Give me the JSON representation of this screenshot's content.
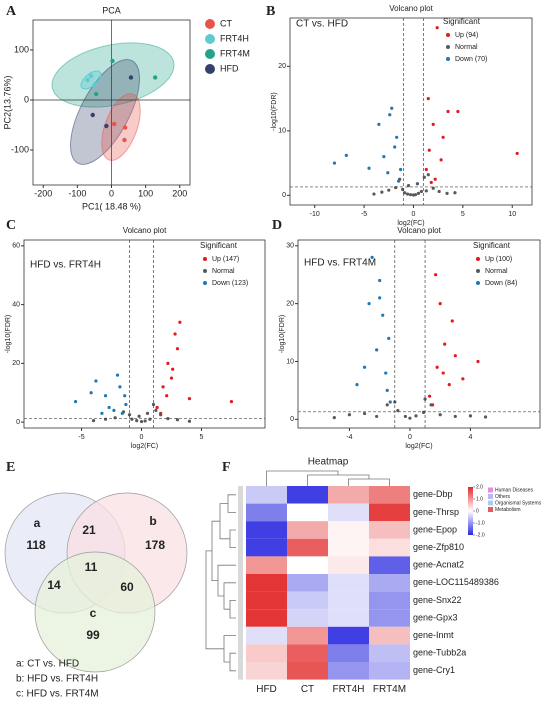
{
  "chart_data": [
    {
      "type": "scatter",
      "panel": "A",
      "title": "PCA",
      "xlabel": "PC1( 18.48 %)",
      "ylabel": "PC2(13.76%)",
      "xlim": [
        -230,
        230
      ],
      "ylim": [
        -170,
        160
      ],
      "xticks": [
        -200,
        -100,
        0,
        100,
        200
      ],
      "yticks": [
        -100,
        0,
        100
      ],
      "series": [
        {
          "name": "CT",
          "color": "#e8534a",
          "x": [
            8,
            38,
            40
          ],
          "values": [
            -48,
            -80,
            -55
          ]
        },
        {
          "name": "FRT4H",
          "color": "#5fcbd0",
          "x": [
            -70,
            -50,
            -60
          ],
          "values": [
            40,
            30,
            48
          ]
        },
        {
          "name": "FRT4M",
          "color": "#23a48a",
          "x": [
            3,
            128,
            -45
          ],
          "values": [
            78,
            45,
            12
          ]
        },
        {
          "name": "HFD",
          "color": "#33416b",
          "x": [
            57,
            -15,
            -55
          ],
          "values": [
            45,
            -52,
            -30
          ]
        }
      ]
    },
    {
      "type": "volcano",
      "panel": "B",
      "title": "Volcano plot",
      "subtitle": "CT vs. HFD",
      "legend_title": "Significant",
      "xlabel": "log2(FC)",
      "ylabel": "-log10(FDR)",
      "xlim": [
        -12.5,
        12
      ],
      "ylim": [
        -1.5,
        27.5
      ],
      "xticks": [
        -10,
        -5,
        0,
        5,
        10
      ],
      "yticks": [
        0,
        10,
        20
      ],
      "vlines": [
        -1,
        1
      ],
      "hline": 1.3,
      "series": [
        {
          "name": "Up (94)",
          "color": "#e41a1c",
          "x": [
            1.3,
            1.6,
            2,
            2.4,
            3,
            3.5,
            1.8,
            2.8,
            4.5,
            10.5,
            2.2,
            1.5
          ],
          "values": [
            4,
            7,
            11,
            26,
            9,
            13,
            2,
            5.5,
            13,
            6.5,
            2.5,
            15
          ]
        },
        {
          "name": "Normal",
          "color": "#595959",
          "x": [
            -3.2,
            -2.5,
            -1.8,
            -1.4,
            -0.9,
            -0.6,
            -0.3,
            0,
            0.2,
            0.5,
            0.8,
            1.1,
            1.5,
            2,
            2.6,
            3.4,
            -0.5,
            0.4,
            -1.1,
            1.3,
            -4,
            4.2
          ],
          "values": [
            0.5,
            0.8,
            1.2,
            2.5,
            0.4,
            0.2,
            0.1,
            0.05,
            0.1,
            0.3,
            0.6,
            2.8,
            3.2,
            1.1,
            0.6,
            0.3,
            1.5,
            1.8,
            0.9,
            0.7,
            0.2,
            0.4
          ]
        },
        {
          "name": "Down (70)",
          "color": "#1f78b4",
          "x": [
            -1.3,
            -1.7,
            -2.2,
            -3,
            -3.5,
            -1.5,
            -2.6,
            -4.5,
            -6.8,
            -8,
            -1.9,
            -2.4
          ],
          "values": [
            4,
            9,
            13.5,
            6,
            11,
            2.2,
            3.5,
            4.2,
            6.2,
            5,
            7.5,
            12.5
          ]
        }
      ]
    },
    {
      "type": "volcano",
      "panel": "C",
      "title": "Volcano plot",
      "subtitle": "HFD vs. FRT4H",
      "legend_title": "Significant",
      "xlabel": "log2(FC)",
      "ylabel": "-log10(FDR)",
      "xlim": [
        -9.8,
        10.3
      ],
      "ylim": [
        -2,
        62
      ],
      "xticks": [
        -5,
        0,
        5
      ],
      "yticks": [
        0,
        20,
        40,
        60
      ],
      "vlines": [
        -1,
        1
      ],
      "hline": 1.3,
      "series": [
        {
          "name": "Up (147)",
          "color": "#e41a1c",
          "x": [
            1.3,
            1.8,
            2.2,
            2.8,
            3.2,
            2.5,
            4,
            7.5,
            1.6,
            3,
            2.1,
            2.6
          ],
          "values": [
            5,
            12,
            20,
            30,
            34,
            15,
            8,
            7,
            3,
            25,
            9,
            18
          ]
        },
        {
          "name": "Normal",
          "color": "#595959",
          "x": [
            -4,
            -3,
            -2.2,
            -1.5,
            -0.8,
            -0.4,
            0,
            0.3,
            0.7,
            1.2,
            1.6,
            2.2,
            3,
            4,
            -0.2,
            0.5,
            -1,
            1
          ],
          "values": [
            0.5,
            1,
            1.5,
            3.5,
            1,
            0.5,
            0.2,
            0.4,
            1,
            4,
            2.5,
            1.2,
            0.8,
            0.3,
            2,
            3,
            2.5,
            6
          ]
        },
        {
          "name": "Down (123)",
          "color": "#1f78b4",
          "x": [
            -1.3,
            -1.8,
            -2.3,
            -3,
            -3.8,
            -5.5,
            -1.6,
            -2.7,
            -4.2,
            -2,
            -1.4,
            -3.3
          ],
          "values": [
            6,
            12,
            4,
            9,
            14,
            7,
            3,
            5,
            10,
            16,
            9,
            3
          ]
        }
      ]
    },
    {
      "type": "volcano",
      "panel": "D",
      "title": "Volcano plot",
      "subtitle": "HFD vs. FRT4M",
      "legend_title": "Significant",
      "xlabel": "log2(FC)",
      "ylabel": "-log10(FDR)",
      "xlim": [
        -7.4,
        8.6
      ],
      "ylim": [
        -1.5,
        31
      ],
      "xticks": [
        -4,
        0,
        4
      ],
      "yticks": [
        0,
        10,
        20,
        30
      ],
      "vlines": [
        -1,
        1
      ],
      "hline": 1.3,
      "series": [
        {
          "name": "Up (100)",
          "color": "#e41a1c",
          "x": [
            1.3,
            1.8,
            2.3,
            2.8,
            3.5,
            4.5,
            2,
            1.5,
            2.6,
            3,
            1.7,
            2.2
          ],
          "values": [
            4,
            9,
            13,
            17,
            7,
            10,
            20,
            2.5,
            6,
            11,
            25,
            8
          ]
        },
        {
          "name": "Normal",
          "color": "#595959",
          "x": [
            -5,
            -4,
            -3,
            -2.2,
            -1.5,
            -0.8,
            -0.3,
            0,
            0.4,
            0.9,
            1.4,
            2,
            3,
            4,
            5,
            -1,
            1
          ],
          "values": [
            0.3,
            0.8,
            1,
            0.5,
            2.5,
            1.5,
            0.5,
            0.2,
            0.6,
            1.2,
            2.5,
            0.8,
            0.5,
            0.6,
            0.4,
            3,
            3.5
          ]
        },
        {
          "name": "Down (84)",
          "color": "#1f78b4",
          "x": [
            -1.3,
            -1.6,
            -2,
            -2.5,
            -1.8,
            -2.2,
            -3,
            -1.5,
            -2.7,
            -1.4,
            -2,
            -3.5
          ],
          "values": [
            3,
            8,
            24,
            28,
            18,
            12,
            9,
            5,
            20,
            14,
            21,
            6
          ]
        }
      ]
    },
    {
      "type": "venn",
      "panel": "E",
      "set_labels": [
        "a",
        "b",
        "c"
      ],
      "set_colors": [
        "#e3e6f5",
        "#f9e0e4",
        "#e5f1d9"
      ],
      "values": [
        118,
        178,
        99,
        21,
        14,
        60,
        11
      ],
      "legend": [
        "a: CT vs. HFD",
        "b: HFD vs. FRT4H",
        "c: HFD vs. FRT4M"
      ]
    },
    {
      "type": "heatmap",
      "panel": "F",
      "title": "Heatmap",
      "columns": [
        "HFD",
        "CT",
        "FRT4H",
        "FRT4M"
      ],
      "rows": [
        "gene-Dbp",
        "gene-Thrsp",
        "gene-Epop",
        "gene-Zfp810",
        "gene-Acnat2",
        "gene-LOC115489386",
        "gene-Snx22",
        "gene-Gpx3",
        "gene-Inmt",
        "gene-Tubb2a",
        "gene-Cry1"
      ],
      "values": [
        [
          -0.5,
          -1.8,
          0.8,
          1.2
        ],
        [
          -1.2,
          0,
          -0.3,
          1.8
        ],
        [
          -1.8,
          0.8,
          0.1,
          0.6
        ],
        [
          -1.8,
          1.5,
          0.1,
          0.3
        ],
        [
          1,
          0,
          0.2,
          -1.5
        ],
        [
          1.9,
          -0.8,
          -0.3,
          -0.8
        ],
        [
          1.9,
          -0.5,
          -0.3,
          -1
        ],
        [
          1.9,
          -0.4,
          -0.3,
          -1
        ],
        [
          -0.3,
          1,
          -1.8,
          0.6
        ],
        [
          0.5,
          1.5,
          -1.2,
          -0.6
        ],
        [
          0.4,
          1.6,
          -1,
          -0.7
        ]
      ],
      "colors": [
        "#2a2ae0",
        "#ffffff",
        "#e22a2a"
      ],
      "clim": [
        -2,
        2
      ],
      "cticks": [
        {
          "value": 2,
          "label": "2.0"
        },
        {
          "value": 1,
          "label": "1.0"
        },
        0,
        {
          "value": -1,
          "label": "-1.0"
        },
        {
          "value": -2,
          "label": "-2.0"
        }
      ],
      "legend": [
        "Human Diseases",
        "Others",
        "Organismal Systems",
        "Metabolism"
      ],
      "legend_colors": [
        "#e58be0",
        "#b9b9f0",
        "#a9cdef",
        "#e55a5a"
      ]
    }
  ]
}
